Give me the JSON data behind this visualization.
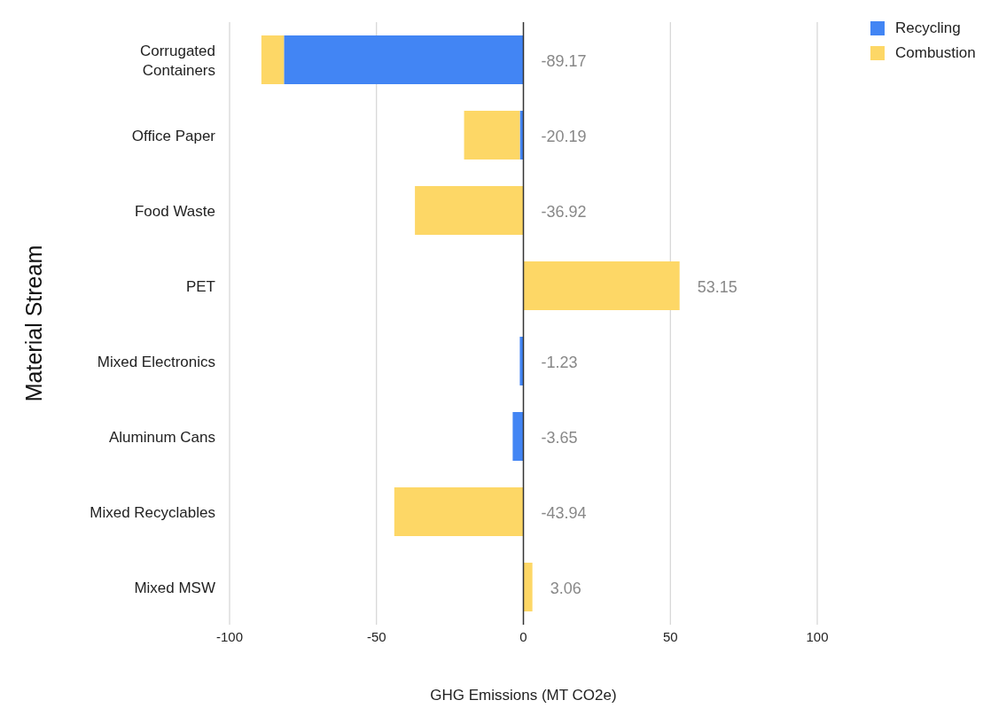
{
  "chart_data": {
    "type": "bar",
    "orientation": "horizontal",
    "stacked": true,
    "xlabel": "GHG Emissions (MT CO2e)",
    "ylabel": "Material Stream",
    "categories": [
      "Corrugated\nContainers",
      "Office Paper",
      "Food Waste",
      "PET",
      "Mixed Electronics",
      "Aluminum Cans",
      "Mixed Recyclables",
      "Mixed MSW"
    ],
    "series": [
      {
        "name": "Recycling",
        "color": "#4285f4",
        "values": [
          -81.5,
          -1.2,
          null,
          null,
          -1.23,
          -3.65,
          null,
          null
        ]
      },
      {
        "name": "Combustion",
        "color": "#fdd766",
        "values": [
          -7.67,
          -18.99,
          -36.92,
          53.15,
          null,
          null,
          -43.94,
          3.06
        ]
      }
    ],
    "totals": [
      "-89.17",
      "-20.19",
      "-36.92",
      "53.15",
      "-1.23",
      "-3.65",
      "-43.94",
      "3.06"
    ],
    "xlim": [
      -100,
      100
    ],
    "xticks": [
      -100,
      -50,
      0,
      50,
      100
    ],
    "grid": "x",
    "legend": "top right"
  }
}
